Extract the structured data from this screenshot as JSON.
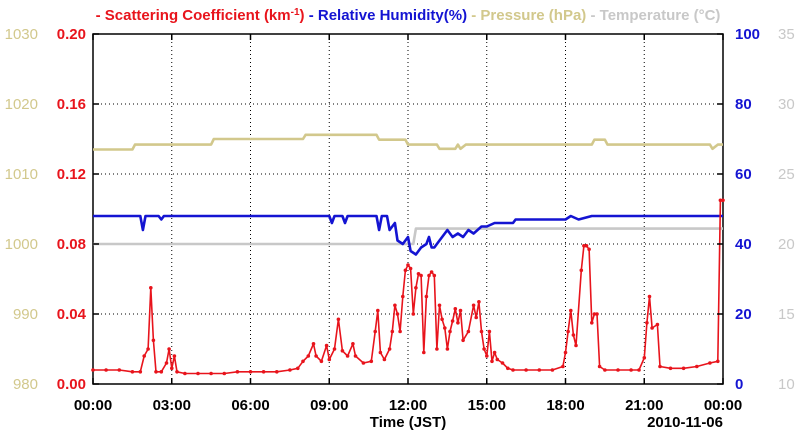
{
  "chart_data": {
    "type": "line",
    "title": "",
    "legend": [
      {
        "name": "Scattering Coefficient (km",
        "superscript": "-1",
        "suffix": ")",
        "color": "#e8141c"
      },
      {
        "name": "Relative Humidity(%)",
        "color": "#1414d2"
      },
      {
        "name": "Pressure (hPa)",
        "color": "#d2c88c"
      },
      {
        "name": "Temperature (",
        "degree": "°",
        "suffix": "C)",
        "color": "#c8c8c8"
      }
    ],
    "xlabel": "Time (JST)",
    "date_label": "2010-11-06",
    "x_ticks": [
      "00:00",
      "03:00",
      "06:00",
      "09:00",
      "12:00",
      "15:00",
      "18:00",
      "21:00",
      "00:00"
    ],
    "x_range_hours": [
      0,
      24
    ],
    "axes": {
      "pressure": {
        "ticks": [
          "980",
          "990",
          "1000",
          "1010",
          "1020",
          "1030"
        ],
        "range": [
          980,
          1030
        ],
        "color": "#d2c88c"
      },
      "scattering": {
        "ticks": [
          "0.00",
          "0.04",
          "0.08",
          "0.12",
          "0.16",
          "0.20"
        ],
        "range": [
          0,
          0.2
        ],
        "color": "#e8141c"
      },
      "humidity": {
        "ticks": [
          "0",
          "20",
          "40",
          "60",
          "80",
          "100"
        ],
        "range": [
          0,
          100
        ],
        "color": "#1414d2"
      },
      "temperature": {
        "ticks": [
          "10",
          "15",
          "20",
          "25",
          "30",
          "35"
        ],
        "range": [
          10,
          35
        ],
        "color": "#c8c8c8"
      }
    },
    "series": [
      {
        "name": "Scattering Coefficient",
        "axis": "scattering",
        "color": "#e8141c",
        "markers": true,
        "points": [
          [
            0,
            0.008
          ],
          [
            0.5,
            0.008
          ],
          [
            1.0,
            0.008
          ],
          [
            1.5,
            0.007
          ],
          [
            1.8,
            0.007
          ],
          [
            1.95,
            0.016
          ],
          [
            2.1,
            0.02
          ],
          [
            2.2,
            0.055
          ],
          [
            2.3,
            0.025
          ],
          [
            2.4,
            0.007
          ],
          [
            2.6,
            0.007
          ],
          [
            2.8,
            0.012
          ],
          [
            2.9,
            0.02
          ],
          [
            3.0,
            0.009
          ],
          [
            3.1,
            0.016
          ],
          [
            3.2,
            0.007
          ],
          [
            3.5,
            0.006
          ],
          [
            4.0,
            0.006
          ],
          [
            4.5,
            0.006
          ],
          [
            5.0,
            0.006
          ],
          [
            5.5,
            0.007
          ],
          [
            6.0,
            0.007
          ],
          [
            6.5,
            0.007
          ],
          [
            7.0,
            0.007
          ],
          [
            7.5,
            0.008
          ],
          [
            7.8,
            0.009
          ],
          [
            8.0,
            0.013
          ],
          [
            8.2,
            0.016
          ],
          [
            8.4,
            0.023
          ],
          [
            8.5,
            0.016
          ],
          [
            8.7,
            0.013
          ],
          [
            8.9,
            0.022
          ],
          [
            9.0,
            0.014
          ],
          [
            9.2,
            0.02
          ],
          [
            9.35,
            0.037
          ],
          [
            9.5,
            0.019
          ],
          [
            9.7,
            0.016
          ],
          [
            9.9,
            0.023
          ],
          [
            10.0,
            0.016
          ],
          [
            10.3,
            0.012
          ],
          [
            10.6,
            0.013
          ],
          [
            10.75,
            0.03
          ],
          [
            10.85,
            0.042
          ],
          [
            10.95,
            0.018
          ],
          [
            11.1,
            0.014
          ],
          [
            11.3,
            0.02
          ],
          [
            11.4,
            0.03
          ],
          [
            11.5,
            0.045
          ],
          [
            11.6,
            0.04
          ],
          [
            11.7,
            0.03
          ],
          [
            11.8,
            0.05
          ],
          [
            11.9,
            0.065
          ],
          [
            12.0,
            0.068
          ],
          [
            12.1,
            0.066
          ],
          [
            12.2,
            0.04
          ],
          [
            12.3,
            0.055
          ],
          [
            12.4,
            0.063
          ],
          [
            12.5,
            0.062
          ],
          [
            12.6,
            0.018
          ],
          [
            12.7,
            0.05
          ],
          [
            12.8,
            0.062
          ],
          [
            12.9,
            0.064
          ],
          [
            13.0,
            0.062
          ],
          [
            13.1,
            0.02
          ],
          [
            13.2,
            0.045
          ],
          [
            13.3,
            0.037
          ],
          [
            13.4,
            0.032
          ],
          [
            13.5,
            0.02
          ],
          [
            13.6,
            0.03
          ],
          [
            13.7,
            0.036
          ],
          [
            13.8,
            0.043
          ],
          [
            13.9,
            0.035
          ],
          [
            14.0,
            0.042
          ],
          [
            14.1,
            0.025
          ],
          [
            14.3,
            0.03
          ],
          [
            14.5,
            0.045
          ],
          [
            14.6,
            0.038
          ],
          [
            14.7,
            0.047
          ],
          [
            14.8,
            0.03
          ],
          [
            14.9,
            0.02
          ],
          [
            15.0,
            0.016
          ],
          [
            15.1,
            0.03
          ],
          [
            15.2,
            0.013
          ],
          [
            15.3,
            0.018
          ],
          [
            15.4,
            0.014
          ],
          [
            15.6,
            0.012
          ],
          [
            15.8,
            0.009
          ],
          [
            16.0,
            0.008
          ],
          [
            16.5,
            0.008
          ],
          [
            17.0,
            0.008
          ],
          [
            17.5,
            0.008
          ],
          [
            17.9,
            0.01
          ],
          [
            18.0,
            0.018
          ],
          [
            18.1,
            0.03
          ],
          [
            18.2,
            0.042
          ],
          [
            18.3,
            0.028
          ],
          [
            18.4,
            0.022
          ],
          [
            18.6,
            0.065
          ],
          [
            18.7,
            0.079
          ],
          [
            18.8,
            0.079
          ],
          [
            18.9,
            0.077
          ],
          [
            19.0,
            0.035
          ],
          [
            19.1,
            0.04
          ],
          [
            19.2,
            0.04
          ],
          [
            19.3,
            0.01
          ],
          [
            19.5,
            0.008
          ],
          [
            20.0,
            0.008
          ],
          [
            20.5,
            0.008
          ],
          [
            20.8,
            0.008
          ],
          [
            21.0,
            0.015
          ],
          [
            21.1,
            0.035
          ],
          [
            21.2,
            0.05
          ],
          [
            21.3,
            0.032
          ],
          [
            21.5,
            0.034
          ],
          [
            21.6,
            0.01
          ],
          [
            22.0,
            0.009
          ],
          [
            22.5,
            0.009
          ],
          [
            23.0,
            0.01
          ],
          [
            23.5,
            0.012
          ],
          [
            23.8,
            0.013
          ],
          [
            23.9,
            0.105
          ],
          [
            24.0,
            0.105
          ]
        ]
      },
      {
        "name": "Relative Humidity",
        "axis": "humidity",
        "color": "#1414d2",
        "markers": false,
        "points": [
          [
            0,
            48
          ],
          [
            1.8,
            48
          ],
          [
            1.9,
            44
          ],
          [
            2.0,
            48
          ],
          [
            2.5,
            48
          ],
          [
            2.6,
            47
          ],
          [
            2.7,
            48
          ],
          [
            9.0,
            48
          ],
          [
            9.1,
            46
          ],
          [
            9.2,
            48
          ],
          [
            9.5,
            48
          ],
          [
            9.6,
            46
          ],
          [
            9.7,
            48
          ],
          [
            10.8,
            48
          ],
          [
            10.9,
            44
          ],
          [
            11.0,
            48
          ],
          [
            11.2,
            48
          ],
          [
            11.3,
            44
          ],
          [
            11.5,
            46
          ],
          [
            11.6,
            41
          ],
          [
            11.8,
            40
          ],
          [
            12.0,
            42
          ],
          [
            12.1,
            38
          ],
          [
            12.3,
            37
          ],
          [
            12.5,
            39
          ],
          [
            12.7,
            40
          ],
          [
            12.8,
            42
          ],
          [
            12.9,
            39
          ],
          [
            13.0,
            39
          ],
          [
            13.2,
            41
          ],
          [
            13.5,
            44
          ],
          [
            13.7,
            42
          ],
          [
            13.9,
            43
          ],
          [
            14.1,
            42
          ],
          [
            14.3,
            44
          ],
          [
            14.5,
            43
          ],
          [
            14.8,
            45
          ],
          [
            15.0,
            45
          ],
          [
            15.3,
            46
          ],
          [
            15.6,
            46
          ],
          [
            16.0,
            46
          ],
          [
            16.1,
            47
          ],
          [
            17.0,
            47
          ],
          [
            17.5,
            47
          ],
          [
            18.0,
            47
          ],
          [
            18.2,
            48
          ],
          [
            18.5,
            47
          ],
          [
            19.0,
            48
          ],
          [
            19.5,
            48
          ],
          [
            20.0,
            48
          ],
          [
            21.0,
            48
          ],
          [
            22.0,
            48
          ],
          [
            23.0,
            48
          ],
          [
            23.8,
            48
          ],
          [
            23.9,
            48
          ],
          [
            24.0,
            48
          ]
        ]
      },
      {
        "name": "Pressure",
        "axis": "pressure",
        "color": "#d2c88c",
        "markers": false,
        "points": [
          [
            0,
            1013.5
          ],
          [
            1.5,
            1013.5
          ],
          [
            1.6,
            1014.2
          ],
          [
            4.5,
            1014.2
          ],
          [
            4.6,
            1015.0
          ],
          [
            8.0,
            1015.0
          ],
          [
            8.1,
            1015.6
          ],
          [
            10.8,
            1015.6
          ],
          [
            10.9,
            1014.9
          ],
          [
            11.9,
            1014.9
          ],
          [
            12.0,
            1014.2
          ],
          [
            13.1,
            1014.2
          ],
          [
            13.2,
            1013.6
          ],
          [
            13.8,
            1013.6
          ],
          [
            13.9,
            1014.2
          ],
          [
            14.0,
            1013.6
          ],
          [
            14.2,
            1014.2
          ],
          [
            19.0,
            1014.2
          ],
          [
            19.1,
            1014.9
          ],
          [
            19.5,
            1014.9
          ],
          [
            19.6,
            1014.2
          ],
          [
            23.5,
            1014.2
          ],
          [
            23.6,
            1013.6
          ],
          [
            23.8,
            1014.2
          ],
          [
            24.0,
            1014.2
          ]
        ]
      },
      {
        "name": "Temperature",
        "axis": "temperature",
        "color": "#c8c8c8",
        "markers": false,
        "points": [
          [
            0,
            20
          ],
          [
            12.2,
            20
          ],
          [
            12.3,
            21.1
          ],
          [
            24.0,
            21.1
          ]
        ]
      }
    ]
  }
}
